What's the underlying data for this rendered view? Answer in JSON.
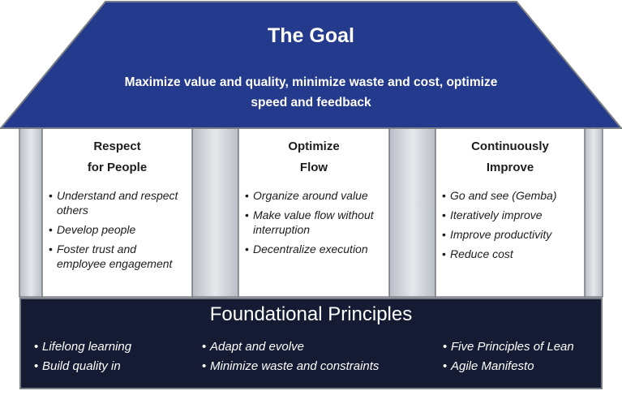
{
  "roof": {
    "title": "The Goal",
    "text": "Maximize value and quality, minimize waste and cost, optimize speed and feedback"
  },
  "pillars": [
    {
      "title_lines": [
        "Respect",
        "for People"
      ],
      "bullets": [
        "Understand and respect others",
        "Develop people",
        "Foster trust and employee engagement"
      ]
    },
    {
      "title_lines": [
        "Optimize",
        "Flow"
      ],
      "bullets": [
        "Organize around value",
        "Make value flow without interruption",
        "Decentralize execution"
      ]
    },
    {
      "title_lines": [
        "Continuously",
        "Improve"
      ],
      "bullets": [
        "Go and see (Gemba)",
        "Iteratively improve",
        "Improve productivity",
        "Reduce cost"
      ]
    }
  ],
  "foundation": {
    "title": "Foundational Principles",
    "columns": [
      [
        "Lifelong learning",
        "Build quality in"
      ],
      [
        "Adapt and evolve",
        "Minimize waste and constraints"
      ],
      [
        "Five Principles of Lean",
        "Agile Manifesto"
      ]
    ]
  },
  "colors": {
    "roof": "#243a8c",
    "pillar_face": "#ffffff",
    "pillar_gap": "#c9ccd2",
    "foundation": "#141b33",
    "outline": "#7a7d84"
  }
}
